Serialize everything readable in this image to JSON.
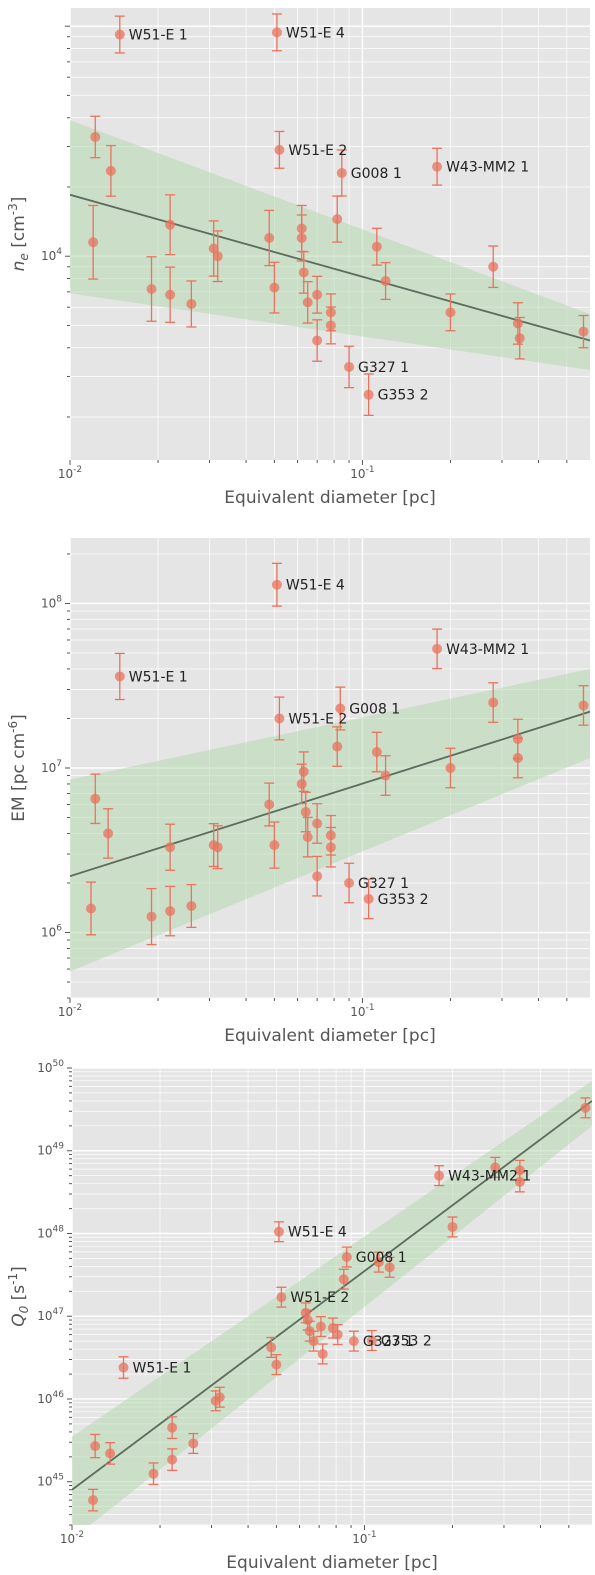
{
  "colors": {
    "panel_bg": "#e5e5e5",
    "grid": "#ffffff",
    "point": "#e8735e",
    "errorbar": "#e8735e",
    "fit_line": "#5c6b5c",
    "band": "#b5d8b0"
  },
  "chart_data": [
    {
      "type": "scatter",
      "xlabel": "Equivalent diameter [pc]",
      "ylabel": "n_e [cm^-3]",
      "xscale": "log",
      "yscale": "log",
      "xlim": [
        0.01,
        0.6
      ],
      "ylim": [
        1300,
        120000
      ],
      "grid": true,
      "x_tick_labels": [
        "10^-2",
        "10^-1"
      ],
      "y_tick_labels": [
        "10^4"
      ],
      "points": [
        {
          "x": 0.012,
          "y": 11500,
          "err": 0.16
        },
        {
          "x": 0.0122,
          "y": 33000,
          "err": 0.09
        },
        {
          "x": 0.0138,
          "y": 23500,
          "err": 0.11
        },
        {
          "x": 0.0148,
          "y": 92000,
          "err": 0.08,
          "label": "W51-E 1"
        },
        {
          "x": 0.019,
          "y": 7200,
          "err": 0.14
        },
        {
          "x": 0.022,
          "y": 13700,
          "err": 0.13
        },
        {
          "x": 0.022,
          "y": 6800,
          "err": 0.12
        },
        {
          "x": 0.026,
          "y": 6200,
          "err": 0.1
        },
        {
          "x": 0.031,
          "y": 10800,
          "err": 0.12
        },
        {
          "x": 0.032,
          "y": 10000,
          "err": 0.11
        },
        {
          "x": 0.048,
          "y": 12000,
          "err": 0.12
        },
        {
          "x": 0.05,
          "y": 7300,
          "err": 0.11
        },
        {
          "x": 0.051,
          "y": 94000,
          "err": 0.08,
          "label": "W51-E 4"
        },
        {
          "x": 0.052,
          "y": 29000,
          "err": 0.08,
          "label": "W51-E 2"
        },
        {
          "x": 0.062,
          "y": 13200,
          "err": 0.1
        },
        {
          "x": 0.062,
          "y": 12000,
          "err": 0.1
        },
        {
          "x": 0.063,
          "y": 8500,
          "err": 0.09
        },
        {
          "x": 0.065,
          "y": 6300,
          "err": 0.09
        },
        {
          "x": 0.07,
          "y": 6800,
          "err": 0.08
        },
        {
          "x": 0.07,
          "y": 4300,
          "err": 0.09
        },
        {
          "x": 0.078,
          "y": 5700,
          "err": 0.08
        },
        {
          "x": 0.078,
          "y": 5000,
          "err": 0.08
        },
        {
          "x": 0.082,
          "y": 14500,
          "err": 0.1
        },
        {
          "x": 0.085,
          "y": 23000,
          "err": 0.1,
          "label": "G008 1"
        },
        {
          "x": 0.09,
          "y": 3300,
          "err": 0.09,
          "label": "G327 1"
        },
        {
          "x": 0.105,
          "y": 2500,
          "err": 0.09,
          "label": "G353 2"
        },
        {
          "x": 0.112,
          "y": 11000,
          "err": 0.08
        },
        {
          "x": 0.12,
          "y": 7800,
          "err": 0.08
        },
        {
          "x": 0.2,
          "y": 5700,
          "err": 0.08
        },
        {
          "x": 0.18,
          "y": 24500,
          "err": 0.08,
          "label": "W43-MM2 1"
        },
        {
          "x": 0.28,
          "y": 9000,
          "err": 0.09
        },
        {
          "x": 0.34,
          "y": 5100,
          "err": 0.09
        },
        {
          "x": 0.345,
          "y": 4400,
          "err": 0.09
        },
        {
          "x": 0.57,
          "y": 4700,
          "err": 0.07
        }
      ],
      "fit": {
        "x": [
          0.01,
          0.6
        ],
        "y": [
          18500,
          4300
        ]
      },
      "band": {
        "x": [
          0.01,
          0.6
        ],
        "upper": [
          39000,
          5600
        ],
        "lower": [
          6900,
          3200
        ]
      }
    },
    {
      "type": "scatter",
      "xlabel": "Equivalent diameter [pc]",
      "ylabel": "EM [pc cm^-6]",
      "xscale": "log",
      "yscale": "log",
      "xlim": [
        0.01,
        0.6
      ],
      "ylim": [
        400000,
        250000000
      ],
      "grid": true,
      "x_tick_labels": [
        "10^-2",
        "10^-1"
      ],
      "y_tick_labels": [
        "10^6",
        "10^7",
        "10^8"
      ],
      "points": [
        {
          "x": 0.0118,
          "y": 1400000,
          "err": 0.16
        },
        {
          "x": 0.0122,
          "y": 6500000,
          "err": 0.15
        },
        {
          "x": 0.0135,
          "y": 4000000,
          "err": 0.15
        },
        {
          "x": 0.0148,
          "y": 36000000,
          "err": 0.14,
          "label": "W51-E 1"
        },
        {
          "x": 0.019,
          "y": 1250000,
          "err": 0.17
        },
        {
          "x": 0.022,
          "y": 3300000,
          "err": 0.14
        },
        {
          "x": 0.022,
          "y": 1350000,
          "err": 0.15
        },
        {
          "x": 0.026,
          "y": 1450000,
          "err": 0.13
        },
        {
          "x": 0.031,
          "y": 3400000,
          "err": 0.13
        },
        {
          "x": 0.032,
          "y": 3300000,
          "err": 0.13
        },
        {
          "x": 0.048,
          "y": 6000000,
          "err": 0.13
        },
        {
          "x": 0.05,
          "y": 3400000,
          "err": 0.14
        },
        {
          "x": 0.051,
          "y": 130000000,
          "err": 0.13,
          "label": "W51-E 4"
        },
        {
          "x": 0.052,
          "y": 20000000,
          "err": 0.13,
          "label": "W51-E 2"
        },
        {
          "x": 0.062,
          "y": 8000000,
          "err": 0.12
        },
        {
          "x": 0.063,
          "y": 9500000,
          "err": 0.12
        },
        {
          "x": 0.064,
          "y": 5400000,
          "err": 0.12
        },
        {
          "x": 0.065,
          "y": 3800000,
          "err": 0.12
        },
        {
          "x": 0.07,
          "y": 4600000,
          "err": 0.12
        },
        {
          "x": 0.07,
          "y": 2200000,
          "err": 0.12
        },
        {
          "x": 0.078,
          "y": 3900000,
          "err": 0.12
        },
        {
          "x": 0.078,
          "y": 3300000,
          "err": 0.12
        },
        {
          "x": 0.082,
          "y": 13500000,
          "err": 0.12
        },
        {
          "x": 0.084,
          "y": 23000000,
          "err": 0.13,
          "label": "G008 1"
        },
        {
          "x": 0.09,
          "y": 2000000,
          "err": 0.12,
          "label": "G327 1"
        },
        {
          "x": 0.105,
          "y": 1600000,
          "err": 0.12,
          "label": "G353 2"
        },
        {
          "x": 0.112,
          "y": 12500000,
          "err": 0.12
        },
        {
          "x": 0.12,
          "y": 9000000,
          "err": 0.12
        },
        {
          "x": 0.2,
          "y": 10000000,
          "err": 0.12
        },
        {
          "x": 0.18,
          "y": 53000000,
          "err": 0.12,
          "label": "W43-MM2 1"
        },
        {
          "x": 0.28,
          "y": 25000000,
          "err": 0.12
        },
        {
          "x": 0.34,
          "y": 15000000,
          "err": 0.12
        },
        {
          "x": 0.34,
          "y": 11500000,
          "err": 0.12
        },
        {
          "x": 0.57,
          "y": 24000000,
          "err": 0.12
        }
      ],
      "fit": {
        "x": [
          0.01,
          0.6
        ],
        "y": [
          2200000,
          22000000
        ]
      },
      "band": {
        "x": [
          0.01,
          0.6
        ],
        "upper": [
          8500000,
          40000000
        ],
        "lower": [
          580000,
          11500000
        ]
      }
    },
    {
      "type": "scatter",
      "xlabel": "Equivalent diameter [pc]",
      "ylabel": "Q_0 [s^-1]",
      "xscale": "log",
      "yscale": "log",
      "xlim": [
        0.01,
        0.6
      ],
      "ylim": [
        3e+44,
        1e+50
      ],
      "grid": true,
      "x_tick_labels": [
        "10^-2",
        "10^-1"
      ],
      "y_tick_labels": [
        "10^45",
        "10^46",
        "10^47",
        "10^48",
        "10^49",
        "10^50"
      ],
      "points": [
        {
          "x": 0.0118,
          "y": 6e+44,
          "err": 0.13
        },
        {
          "x": 0.012,
          "y": 2.7e+45,
          "err": 0.14
        },
        {
          "x": 0.0135,
          "y": 2.2e+45,
          "err": 0.13
        },
        {
          "x": 0.015,
          "y": 2.4e+46,
          "err": 0.13,
          "label": "W51-E 1"
        },
        {
          "x": 0.019,
          "y": 1.25e+45,
          "err": 0.13
        },
        {
          "x": 0.022,
          "y": 4.5e+45,
          "err": 0.13
        },
        {
          "x": 0.022,
          "y": 1.85e+45,
          "err": 0.13
        },
        {
          "x": 0.026,
          "y": 2.9e+45,
          "err": 0.12
        },
        {
          "x": 0.031,
          "y": 9.5e+45,
          "err": 0.12
        },
        {
          "x": 0.032,
          "y": 1.05e+46,
          "err": 0.12
        },
        {
          "x": 0.048,
          "y": 4.2e+46,
          "err": 0.12
        },
        {
          "x": 0.05,
          "y": 2.6e+46,
          "err": 0.12
        },
        {
          "x": 0.051,
          "y": 1.05e+48,
          "err": 0.12,
          "label": "W51-E 4"
        },
        {
          "x": 0.052,
          "y": 1.7e+47,
          "err": 0.12,
          "label": "W51-E 2"
        },
        {
          "x": 0.063,
          "y": 1.1e+47,
          "err": 0.12
        },
        {
          "x": 0.064,
          "y": 9e+46,
          "err": 0.12
        },
        {
          "x": 0.065,
          "y": 6.6e+46,
          "err": 0.12
        },
        {
          "x": 0.067,
          "y": 5e+46,
          "err": 0.12
        },
        {
          "x": 0.071,
          "y": 7.5e+46,
          "err": 0.12
        },
        {
          "x": 0.072,
          "y": 3.5e+46,
          "err": 0.12
        },
        {
          "x": 0.078,
          "y": 7.2e+46,
          "err": 0.12
        },
        {
          "x": 0.081,
          "y": 6e+46,
          "err": 0.12
        },
        {
          "x": 0.085,
          "y": 2.8e+47,
          "err": 0.12
        },
        {
          "x": 0.087,
          "y": 5.2e+47,
          "err": 0.12,
          "label": "G008 1"
        },
        {
          "x": 0.092,
          "y": 5e+46,
          "err": 0.12,
          "label": "G327 1"
        },
        {
          "x": 0.106,
          "y": 5.1e+46,
          "err": 0.12,
          "label": "G353 2"
        },
        {
          "x": 0.112,
          "y": 4.5e+47,
          "err": 0.12
        },
        {
          "x": 0.122,
          "y": 3.9e+47,
          "err": 0.12
        },
        {
          "x": 0.2,
          "y": 1.2e+48,
          "err": 0.12
        },
        {
          "x": 0.18,
          "y": 5e+48,
          "err": 0.12,
          "label": "W43-MM2 1"
        },
        {
          "x": 0.28,
          "y": 6.3e+48,
          "err": 0.12
        },
        {
          "x": 0.34,
          "y": 5.8e+48,
          "err": 0.12
        },
        {
          "x": 0.34,
          "y": 4.2e+48,
          "err": 0.12
        },
        {
          "x": 0.57,
          "y": 3.3e+49,
          "err": 0.12
        }
      ],
      "fit": {
        "x": [
          0.01,
          0.6
        ],
        "y": [
          8e+44,
          4e+49
        ]
      },
      "band": {
        "x": [
          0.01,
          0.6
        ],
        "upper": [
          3.5e+45,
          7e+49
        ],
        "lower": [
          2e+44,
          2e+49
        ]
      }
    }
  ]
}
